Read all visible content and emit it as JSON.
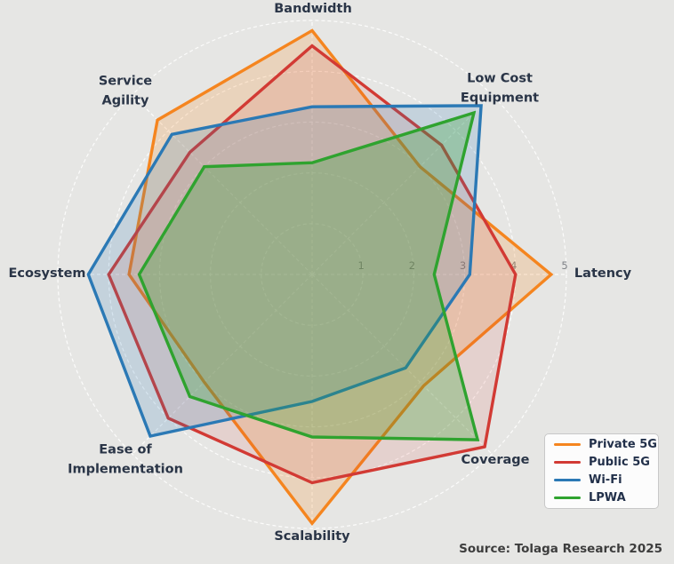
{
  "chart_data": {
    "type": "radar",
    "title": "",
    "axes": [
      "Bandwidth",
      "Low Cost\nEquipment",
      "Latency",
      "Coverage",
      "Scalability",
      "Ease of\nImplementation",
      "Ecosystem",
      "Service\nAgility"
    ],
    "scale": {
      "min": 0,
      "max": 5,
      "ring_ticks": [
        1,
        2,
        3,
        4,
        5
      ]
    },
    "grid": true,
    "legend_position": "lower right",
    "series": [
      {
        "name": "Private 5G",
        "color": "#f5851f",
        "fill_opacity": 0.2,
        "values": [
          4.8,
          3.0,
          4.7,
          3.1,
          4.9,
          3.0,
          3.6,
          4.3
        ]
      },
      {
        "name": "Public 5G",
        "color": "#d23a34",
        "fill_opacity": 0.12,
        "values": [
          4.5,
          3.6,
          4.0,
          4.8,
          4.1,
          4.0,
          4.0,
          3.4
        ]
      },
      {
        "name": "Wi-Fi",
        "color": "#2b79b5",
        "fill_opacity": 0.18,
        "values": [
          3.3,
          4.7,
          3.1,
          2.6,
          2.5,
          4.5,
          4.4,
          3.9
        ]
      },
      {
        "name": "LPWA",
        "color": "#2fa32f",
        "fill_opacity": 0.28,
        "values": [
          2.2,
          4.5,
          2.4,
          4.6,
          3.2,
          3.4,
          3.4,
          3.0
        ]
      }
    ]
  },
  "source_note": "Source: Tolaga Research 2025",
  "colors": {
    "background": "#e6e6e4",
    "grid": "#ffffff",
    "axis_label": "#2a3547",
    "tick_label": "#7f8287",
    "source_text": "#3d3d3d",
    "legend_bg": "#fcfcfc",
    "legend_border": "#c8c8c8",
    "legend_text": "#22304a"
  }
}
